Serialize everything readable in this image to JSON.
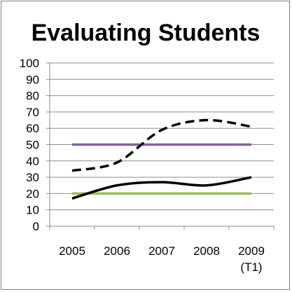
{
  "chart_data": {
    "type": "line",
    "title": "Evaluating Students",
    "categories": [
      "2005",
      "2006",
      "2007",
      "2008",
      "2009"
    ],
    "category_sublabels": [
      "",
      "",
      "",
      "",
      "(T1)"
    ],
    "ylim": [
      0,
      100
    ],
    "yticks": [
      0,
      10,
      20,
      30,
      40,
      50,
      60,
      70,
      80,
      90,
      100
    ],
    "grid": "horizontal",
    "legend": "none",
    "xlabel": "",
    "ylabel": "",
    "series": [
      {
        "values": [
          50,
          50,
          50,
          50,
          50
        ],
        "color": "#8064a2",
        "style": "solid"
      },
      {
        "values": [
          20,
          20,
          20,
          20,
          20
        ],
        "color": "#9bbb59",
        "style": "solid"
      },
      {
        "values": [
          34,
          39,
          59,
          65,
          61
        ],
        "color": "#000000",
        "style": "dashed"
      },
      {
        "values": [
          17,
          25,
          27,
          25,
          30
        ],
        "color": "#000000",
        "style": "solid"
      }
    ]
  }
}
